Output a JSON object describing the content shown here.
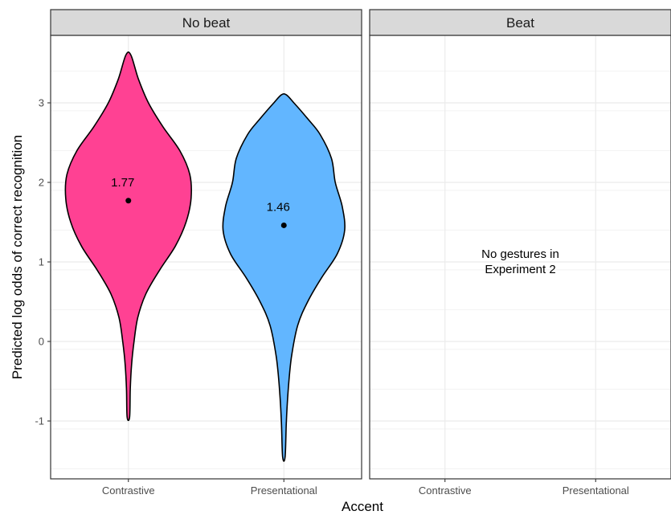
{
  "chart_data": {
    "type": "violin",
    "xlabel": "Accent",
    "ylabel": "Predicted log odds of correct recognition",
    "ylim": [
      -1.6,
      3.8
    ],
    "y_ticks": [
      -1,
      0,
      1,
      2,
      3
    ],
    "y_tick_labels": [
      "-1",
      "0",
      "1",
      "2",
      "3"
    ],
    "categories": [
      "Contrastive",
      "Presentational"
    ],
    "grid": true,
    "legend": "none",
    "panels": [
      {
        "strip_label": "No beat",
        "violins": [
          {
            "category": "Contrastive",
            "color": "#ff4193",
            "mean": 1.77,
            "mean_label": "1.77",
            "min": -0.95,
            "max": 3.6,
            "profile": [
              [
                -0.95,
                0.02
              ],
              [
                -0.6,
                0.03
              ],
              [
                -0.3,
                0.05
              ],
              [
                0.0,
                0.09
              ],
              [
                0.3,
                0.15
              ],
              [
                0.6,
                0.28
              ],
              [
                0.9,
                0.5
              ],
              [
                1.2,
                0.75
              ],
              [
                1.5,
                0.92
              ],
              [
                1.8,
                1.0
              ],
              [
                2.1,
                0.98
              ],
              [
                2.4,
                0.82
              ],
              [
                2.7,
                0.55
              ],
              [
                3.0,
                0.32
              ],
              [
                3.3,
                0.16
              ],
              [
                3.6,
                0.04
              ]
            ]
          },
          {
            "category": "Presentational",
            "color": "#62b6ff",
            "mean": 1.46,
            "mean_label": "1.46",
            "min": -1.45,
            "max": 3.1,
            "profile": [
              [
                -1.45,
                0.02
              ],
              [
                -1.0,
                0.04
              ],
              [
                -0.6,
                0.07
              ],
              [
                -0.2,
                0.12
              ],
              [
                0.2,
                0.22
              ],
              [
                0.5,
                0.38
              ],
              [
                0.8,
                0.6
              ],
              [
                1.1,
                0.85
              ],
              [
                1.4,
                0.97
              ],
              [
                1.7,
                0.93
              ],
              [
                2.0,
                0.82
              ],
              [
                2.3,
                0.76
              ],
              [
                2.6,
                0.58
              ],
              [
                2.8,
                0.38
              ],
              [
                3.0,
                0.16
              ],
              [
                3.1,
                0.04
              ]
            ]
          }
        ]
      },
      {
        "strip_label": "Beat",
        "violins": [],
        "note_lines": [
          "No gestures in",
          "Experiment 2"
        ]
      }
    ]
  }
}
